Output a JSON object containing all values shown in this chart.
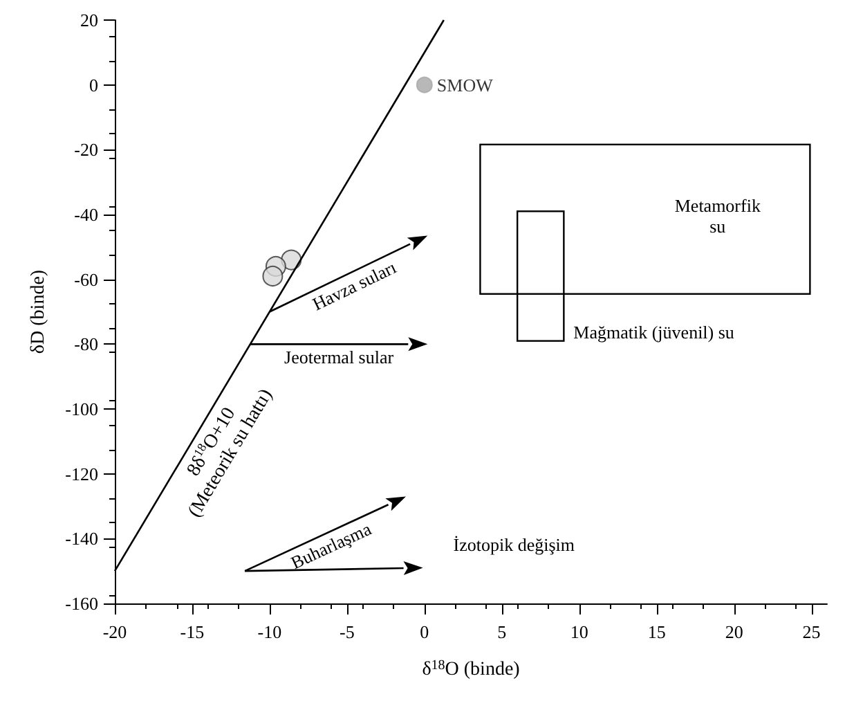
{
  "chart_data": {
    "type": "scatter",
    "xlabel": "δ$^{18}$O (binde)",
    "ylabel": "δD (binde)",
    "xlim": [
      -20,
      26
    ],
    "xticks": [
      -20,
      -15,
      -10,
      -5,
      0,
      5,
      10,
      15,
      20,
      25
    ],
    "ylim": [
      -160,
      20
    ],
    "yticks": [
      -160,
      -140,
      -120,
      -100,
      -80,
      -60,
      -40,
      -20,
      0,
      20
    ],
    "grid": false,
    "series": [
      {
        "color": "#d9d9d9",
        "x": [
          -8.6,
          -9.6,
          -9.8
        ],
        "values": [
          -54,
          -56,
          -59
        ]
      },
      {
        "name": "SMOW",
        "color": "#a6a6a6",
        "x": [
          0
        ],
        "values": [
          0
        ]
      },
      {
        "type": "line",
        "name": "8δ$^{18}$O+10 (Meteorik su hattı)",
        "color": "#000000",
        "x": [
          -20,
          1.25
        ],
        "values": [
          -150,
          20
        ]
      }
    ],
    "annotations": [
      {
        "text": "Havza suları",
        "x": -10,
        "y": -70
      },
      {
        "text": "Jeotermal sular",
        "x": -11.25,
        "y": -80
      },
      "Buharlaşma",
      "İzotopik değişim",
      "Metamorfik\nsu",
      "Mağmatik (jüvenil) su"
    ]
  }
}
